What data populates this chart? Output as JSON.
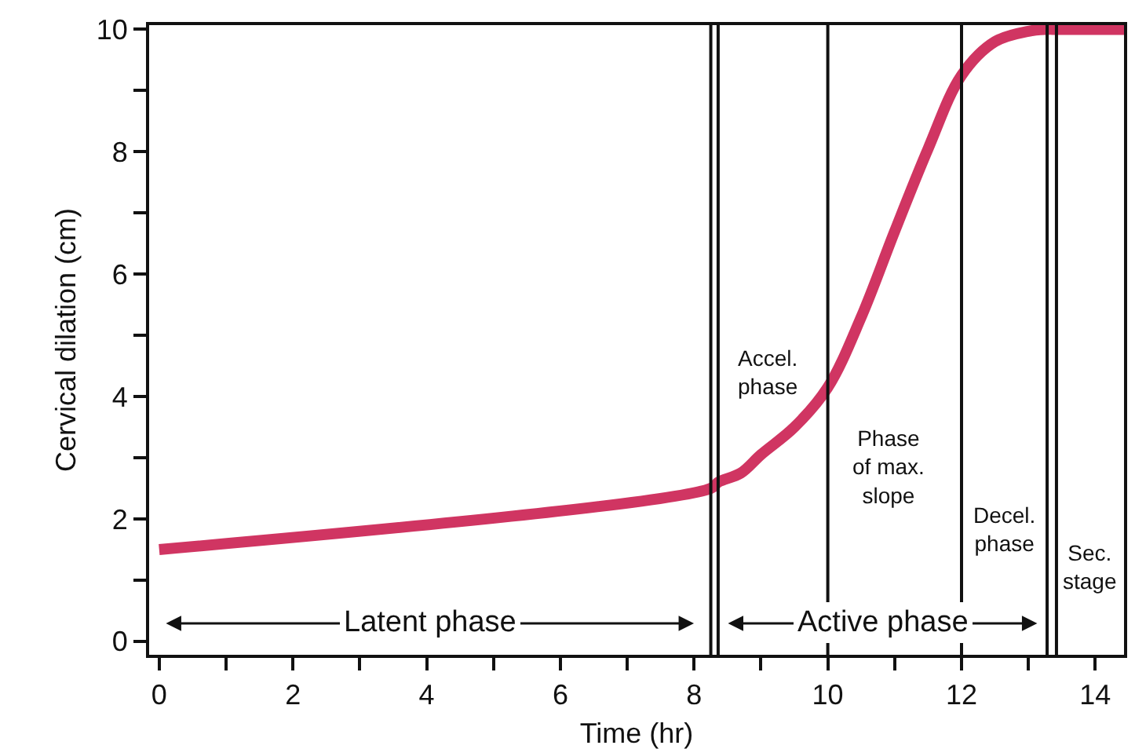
{
  "chart_data": {
    "type": "line",
    "xlabel": "Time (hr)",
    "ylabel": "Cervical dilation (cm)",
    "x": [
      0,
      8.25,
      8.36,
      8.7,
      9,
      9.5,
      10,
      10.5,
      11,
      11.5,
      12,
      12.5,
      13,
      13.28,
      13.42,
      14.43
    ],
    "series": [
      {
        "color": "#d03562",
        "values": [
          1.5,
          2.5,
          2.6,
          2.75,
          3.05,
          3.5,
          4.15,
          5.3,
          6.7,
          8.05,
          9.25,
          9.8,
          9.97,
          10,
          10,
          10
        ]
      }
    ],
    "xlim": [
      -0.15,
      14.43
    ],
    "ylim": [
      -0.22,
      10.07
    ],
    "xticks": [
      0,
      {
        "value": 1,
        "label": null
      },
      2,
      {
        "value": 3,
        "label": null
      },
      4,
      {
        "value": 5,
        "label": null
      },
      6,
      {
        "value": 7,
        "label": null
      },
      8,
      {
        "value": 9,
        "label": null
      },
      10,
      {
        "value": 11,
        "label": null
      },
      12,
      {
        "value": 13,
        "label": null
      },
      14
    ],
    "yticks": [
      0,
      {
        "value": 1,
        "label": null
      },
      2,
      {
        "value": 3,
        "label": null
      },
      4,
      {
        "value": 5,
        "label": null
      },
      6,
      {
        "value": 7,
        "label": null
      },
      8,
      {
        "value": 9,
        "label": null
      },
      10
    ],
    "ref_lines": [
      {
        "axis": "x",
        "value": 8.25
      },
      {
        "axis": "x",
        "value": 8.36
      },
      {
        "axis": "x",
        "value": 10
      },
      {
        "axis": "x",
        "value": 12
      },
      {
        "axis": "x",
        "value": 13.28
      },
      {
        "axis": "x",
        "value": 13.42
      }
    ],
    "annotations": [
      "Latent phase",
      "Active phase",
      "Accel.\nphase",
      "Phase\nof max.\nslope",
      "Decel.\nphase",
      "Sec.\nstage"
    ],
    "grid": false,
    "marker": "none",
    "line_style": "solid"
  }
}
